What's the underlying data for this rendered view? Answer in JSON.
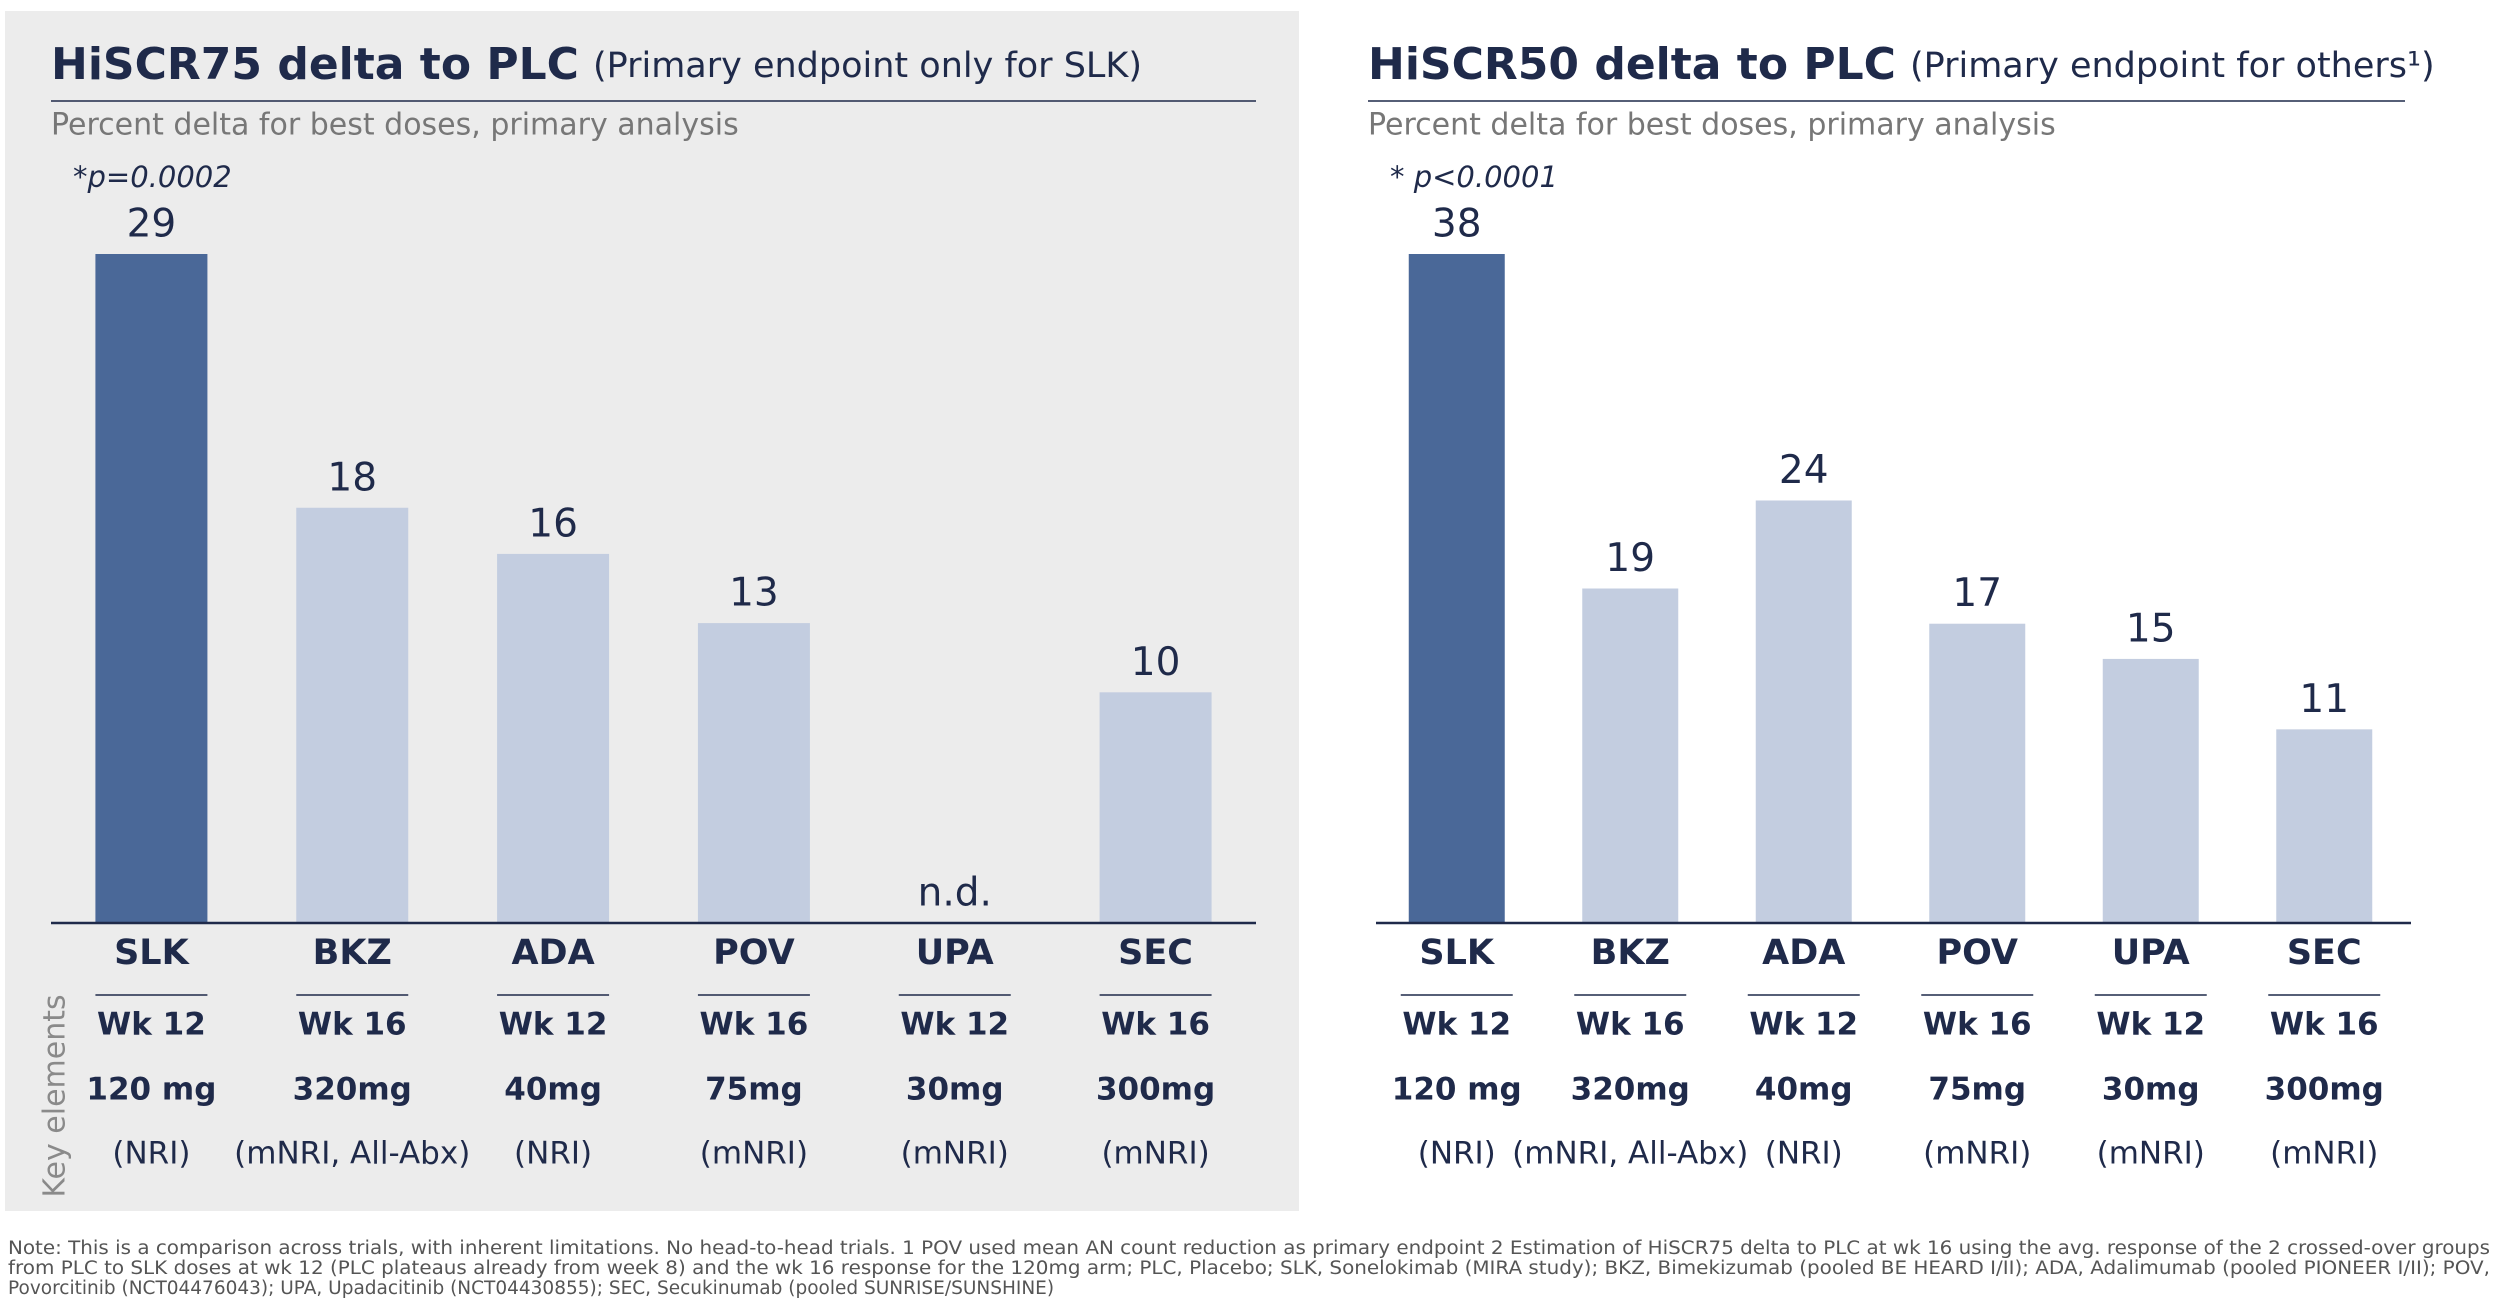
{
  "chart_data": [
    {
      "type": "bar",
      "title": "HiSCR75 delta to PLC",
      "title_note": "(Primary endpoint only for SLK)",
      "subtitle": "Percent delta for best doses, primary analysis",
      "annotation": "*p=0.0002",
      "categories": [
        "SLK",
        "BKZ",
        "ADA",
        "POV",
        "UPA",
        "SEC"
      ],
      "values": [
        29,
        18,
        16,
        13,
        null,
        10
      ],
      "value_labels": [
        "29",
        "18",
        "16",
        "13",
        "n.d.",
        "10"
      ],
      "colors": [
        "#4a6898",
        "#c3cde0",
        "#c3cde0",
        "#c3cde0",
        "#c3cde0",
        "#c3cde0"
      ],
      "ylim": [
        0,
        29
      ],
      "row_header": "Key elements",
      "weeks": [
        "Wk 12",
        "Wk 16",
        "Wk 12",
        "Wk 16",
        "Wk 12",
        "Wk 16"
      ],
      "doses": [
        "120 mg",
        "320mg",
        "40mg",
        "75mg",
        "30mg",
        "300mg"
      ],
      "methods": [
        "(NRI)",
        "(mNRI, All-Abx)",
        "(NRI)",
        "(mNRI)",
        "(mNRI)",
        "(mNRI)"
      ]
    },
    {
      "type": "bar",
      "title": "HiSCR50 delta to PLC",
      "title_note": "(Primary endpoint for others¹)",
      "subtitle": "Percent delta for best doses, primary analysis",
      "annotation": "* p<0.0001",
      "categories": [
        "SLK",
        "BKZ",
        "ADA",
        "POV",
        "UPA",
        "SEC"
      ],
      "values": [
        38,
        19,
        24,
        17,
        15,
        11
      ],
      "colors": [
        "#4a6898",
        "#c3cde0",
        "#c3cde0",
        "#c3cde0",
        "#c3cde0",
        "#c3cde0"
      ],
      "ylim": [
        0,
        38
      ],
      "weeks": [
        "Wk 12",
        "Wk 16",
        "Wk 12",
        "Wk 16",
        "Wk 12",
        "Wk 16"
      ],
      "doses": [
        "120 mg",
        "320mg",
        "40mg",
        "75mg",
        "30mg",
        "300mg"
      ],
      "methods": [
        "(NRI)",
        "(mNRI, All-Abx)",
        "(NRI)",
        "(mNRI)",
        "(mNRI)",
        "(mNRI)"
      ]
    }
  ],
  "footnote": [
    "Note: This is a comparison across trials, with inherent limitations. No head-to-head trials. 1 POV used mean AN count reduction as primary endpoint   2 Estimation of HiSCR75 delta to PLC at wk 16 using the avg. response of the 2 crossed-over groups",
    "from PLC to SLK doses at wk 12 (PLC plateaus already from week 8) and the wk 16 response for the 120mg arm; PLC, Placebo; SLK, Sonelokimab (MIRA study); BKZ, Bimekizumab (pooled BE HEARD I/II); ADA, Adalimumab (pooled PIONEER I/II); POV,",
    "Povorcitinib (NCT04476043); UPA, Upadacitinib (NCT04430855); SEC, Secukinumab (pooled SUNRISE/SUNSHINE)"
  ]
}
